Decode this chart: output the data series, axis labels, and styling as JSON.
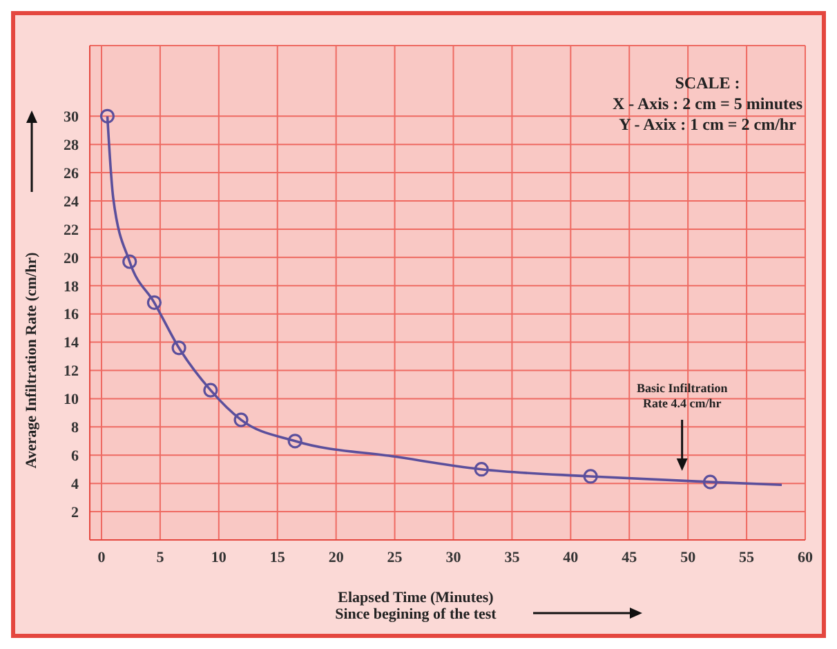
{
  "chart_data": {
    "type": "scatter",
    "xlabel": "Elapsed Time (Minutes)\nSince begining of the test",
    "ylabel": "Average Infiltration Rate (cm/hr)",
    "annotations": [
      "SCALE :",
      "X - Axis : 2 cm = 5 minutes",
      "Y - Axix : 1 cm = 2 cm/hr",
      {
        "text": "Basic Infiltration\nRate 4.4 cm/hr",
        "x": 49.5,
        "y": 4.4
      }
    ],
    "x": [
      0.5,
      2.4,
      4.5,
      6.6,
      9.3,
      11.9,
      16.5,
      32.4,
      41.7,
      51.9
    ],
    "series": [
      {
        "color": "#5b4f9c",
        "marker": "circle",
        "values": [
          30,
          19.7,
          16.8,
          13.6,
          10.6,
          8.5,
          7.0,
          5.0,
          4.5,
          4.1
        ]
      },
      {
        "type": "line",
        "marker": "none",
        "color": "#5b4f9c",
        "x": [
          0.5,
          1,
          2.4,
          4.5,
          6.6,
          9.3,
          11.9,
          16.5,
          25,
          32.4,
          41.7,
          51.9,
          58
        ],
        "values": [
          30,
          24.2,
          19.7,
          16.8,
          13.6,
          10.6,
          8.5,
          7.0,
          5.9,
          5.0,
          4.5,
          4.1,
          3.9
        ]
      }
    ],
    "xlim": [
      -1,
      60
    ],
    "xticks": [
      0,
      5,
      10,
      15,
      20,
      25,
      30,
      35,
      40,
      45,
      50,
      55,
      60
    ],
    "ylim": [
      0,
      35
    ],
    "yticks": [
      2,
      4,
      6,
      8,
      10,
      12,
      14,
      16,
      18,
      20,
      22,
      24,
      26,
      28,
      30
    ],
    "grid": true,
    "line_style": "solid",
    "legend": false
  }
}
